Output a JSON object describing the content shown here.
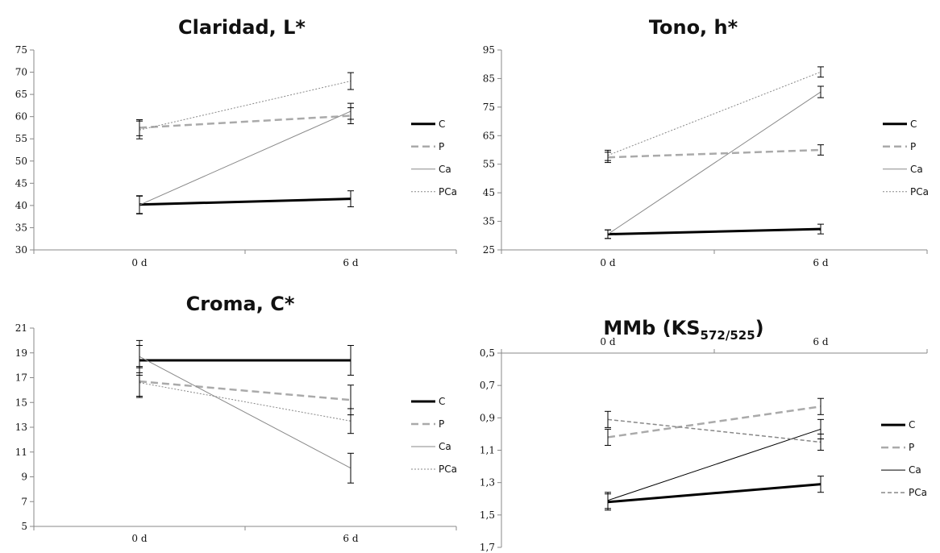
{
  "chart_data": [
    {
      "type": "line",
      "title": "Claridad, L*",
      "title_sub": "",
      "title_tail": "",
      "categories": [
        "0 d",
        "6 d"
      ],
      "ylim": [
        30,
        75
      ],
      "y_ticks": [
        "30",
        "35",
        "40",
        "45",
        "50",
        "55",
        "60",
        "65",
        "70",
        "75"
      ],
      "y_reversed": false,
      "x_axis_position": "bottom",
      "grid": false,
      "legend_position": "right",
      "series": [
        {
          "name": "C",
          "values": [
            40.2,
            41.5
          ],
          "err": [
            2.0,
            1.8
          ],
          "color": "#000000",
          "width": 3,
          "dash": ""
        },
        {
          "name": "P",
          "values": [
            57.5,
            60.2
          ],
          "err": [
            1.8,
            1.8
          ],
          "color": "#aaaaaa",
          "width": 2.5,
          "dash": "9,5"
        },
        {
          "name": "Ca",
          "values": [
            40.1,
            61.2
          ],
          "err": [
            2.0,
            1.8
          ],
          "color": "#888888",
          "width": 1,
          "dash": ""
        },
        {
          "name": "PCa",
          "values": [
            57.0,
            68.0
          ],
          "err": [
            2.0,
            1.9
          ],
          "color": "#888888",
          "width": 1,
          "dash": "2,2"
        }
      ]
    },
    {
      "type": "line",
      "title": "Tono, h*",
      "title_sub": "",
      "title_tail": "",
      "categories": [
        "0 d",
        "6 d"
      ],
      "ylim": [
        25,
        95
      ],
      "y_ticks": [
        "25",
        "35",
        "45",
        "55",
        "65",
        "75",
        "85",
        "95"
      ],
      "y_reversed": false,
      "x_axis_position": "bottom",
      "grid": false,
      "legend_position": "right",
      "series": [
        {
          "name": "C",
          "values": [
            30.5,
            32.3
          ],
          "err": [
            1.5,
            1.7
          ],
          "color": "#000000",
          "width": 3,
          "dash": ""
        },
        {
          "name": "P",
          "values": [
            57.4,
            60.0
          ],
          "err": [
            1.8,
            1.8
          ],
          "color": "#aaaaaa",
          "width": 2.5,
          "dash": "9,5"
        },
        {
          "name": "Ca",
          "values": [
            30.5,
            80.3
          ],
          "err": [
            1.5,
            2.0
          ],
          "color": "#888888",
          "width": 1,
          "dash": ""
        },
        {
          "name": "PCa",
          "values": [
            58.1,
            87.3
          ],
          "err": [
            1.8,
            1.8
          ],
          "color": "#888888",
          "width": 1,
          "dash": "2,2"
        }
      ]
    },
    {
      "type": "line",
      "title": "Croma, C*",
      "title_sub": "",
      "title_tail": "",
      "categories": [
        "0 d",
        "6 d"
      ],
      "ylim": [
        5,
        21
      ],
      "y_ticks": [
        "5",
        "7",
        "9",
        "11",
        "13",
        "15",
        "17",
        "19",
        "21"
      ],
      "y_reversed": false,
      "x_axis_position": "bottom",
      "grid": false,
      "legend_position": "right",
      "series": [
        {
          "name": "C",
          "values": [
            18.4,
            18.4
          ],
          "err": [
            1.2,
            1.2
          ],
          "color": "#000000",
          "width": 3,
          "dash": ""
        },
        {
          "name": "P",
          "values": [
            16.7,
            15.2
          ],
          "err": [
            1.2,
            1.2
          ],
          "color": "#aaaaaa",
          "width": 2.5,
          "dash": "9,5"
        },
        {
          "name": "Ca",
          "values": [
            18.7,
            9.7
          ],
          "err": [
            1.3,
            1.2
          ],
          "color": "#888888",
          "width": 1,
          "dash": ""
        },
        {
          "name": "PCa",
          "values": [
            16.6,
            13.5
          ],
          "err": [
            1.2,
            1.0
          ],
          "color": "#888888",
          "width": 1,
          "dash": "2,2"
        }
      ]
    },
    {
      "type": "line",
      "title": "MMb (KS",
      "title_sub": "572/525",
      "title_tail": ")",
      "categories": [
        "0 d",
        "6 d"
      ],
      "ylim": [
        0.5,
        1.7
      ],
      "y_ticks": [
        "0,5",
        "0,7",
        "0,9",
        "1,1",
        "1,3",
        "1,5",
        "1,7"
      ],
      "y_reversed": true,
      "x_axis_position": "top",
      "grid": false,
      "legend_position": "right",
      "series": [
        {
          "name": "C",
          "values": [
            1.42,
            1.31
          ],
          "err": [
            0.05,
            0.05
          ],
          "color": "#000000",
          "width": 3,
          "dash": ""
        },
        {
          "name": "P",
          "values": [
            1.02,
            0.83
          ],
          "err": [
            0.05,
            0.05
          ],
          "color": "#aaaaaa",
          "width": 2.5,
          "dash": "9,5"
        },
        {
          "name": "Ca",
          "values": [
            1.41,
            0.97
          ],
          "err": [
            0.05,
            0.06
          ],
          "color": "#000000",
          "width": 1,
          "dash": ""
        },
        {
          "name": "PCa",
          "values": [
            0.91,
            1.05
          ],
          "err": [
            0.05,
            0.05
          ],
          "color": "#888888",
          "width": 1.5,
          "dash": "5,3"
        }
      ]
    }
  ]
}
